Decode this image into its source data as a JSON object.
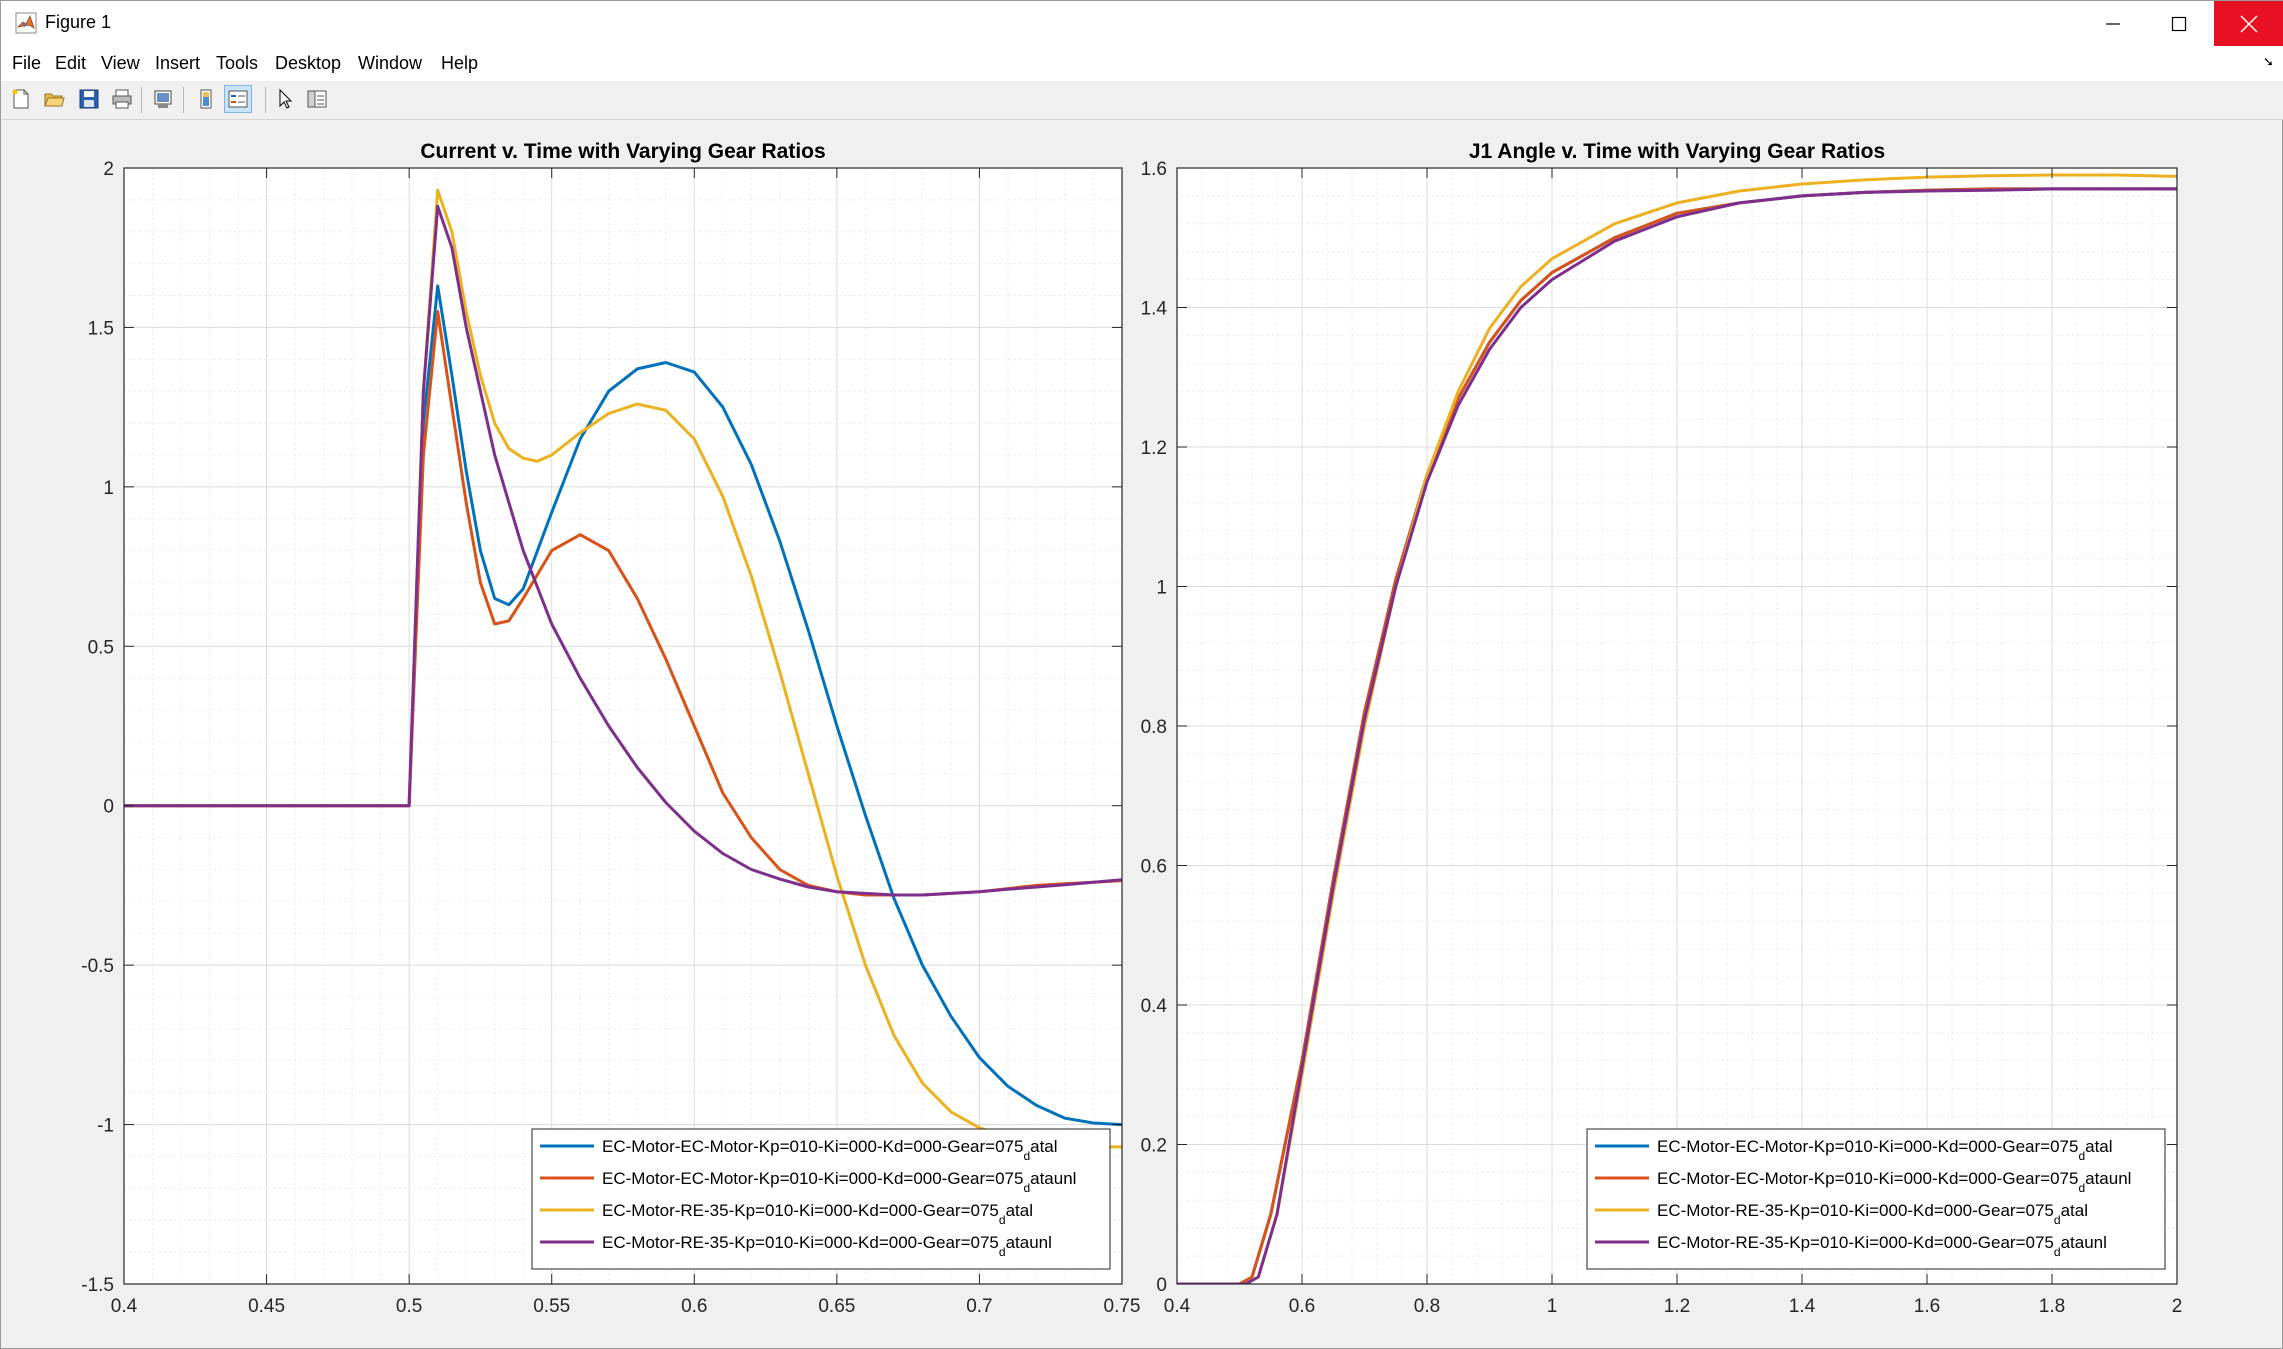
{
  "window": {
    "title": "Figure 1"
  },
  "menu": {
    "items": [
      "File",
      "Edit",
      "View",
      "Insert",
      "Tools",
      "Desktop",
      "Window",
      "Help"
    ]
  },
  "toolbar": {
    "icons": [
      "new-figure-icon",
      "open-file-icon",
      "save-icon",
      "print-icon",
      "print-preview-icon",
      "colorbar-icon",
      "legend-icon",
      "pointer-icon",
      "property-inspector-icon"
    ]
  },
  "colors": {
    "series1": "#0072BD",
    "series2": "#D95319",
    "series3": "#EDB120",
    "series4": "#7E2F8E",
    "close_button": "#e81123"
  },
  "legend_entries": [
    {
      "main": "EC-Motor-EC-Motor-Kp=010-Ki=000-Kd=000-Gear=075",
      "sub": "d",
      "tail": "atal"
    },
    {
      "main": "EC-Motor-EC-Motor-Kp=010-Ki=000-Kd=000-Gear=075",
      "sub": "d",
      "tail": "ataunl"
    },
    {
      "main": "EC-Motor-RE-35-Kp=010-Ki=000-Kd=000-Gear=075",
      "sub": "d",
      "tail": "atal"
    },
    {
      "main": "EC-Motor-RE-35-Kp=010-Ki=000-Kd=000-Gear=075",
      "sub": "d",
      "tail": "ataunl"
    }
  ],
  "chart_data": [
    {
      "type": "line",
      "title": "Current v. Time with Varying Gear Ratios",
      "xlabel": "",
      "ylabel": "",
      "xlim": [
        0.4,
        0.75
      ],
      "ylim": [
        -1.5,
        2
      ],
      "xticks": [
        "0.4",
        "0.45",
        "0.5",
        "0.55",
        "0.6",
        "0.65",
        "0.7",
        "0.75"
      ],
      "yticks": [
        "-1.5",
        "-1",
        "-0.5",
        "0",
        "0.5",
        "1",
        "1.5",
        "2"
      ],
      "grid": true,
      "minor_grid": true,
      "legend_location": "bottom-right",
      "series": [
        {
          "x": [
            0.4,
            0.5,
            0.505,
            0.51,
            0.515,
            0.52,
            0.525,
            0.53,
            0.535,
            0.54,
            0.55,
            0.56,
            0.57,
            0.58,
            0.59,
            0.6,
            0.61,
            0.62,
            0.63,
            0.64,
            0.65,
            0.66,
            0.67,
            0.68,
            0.69,
            0.7,
            0.71,
            0.72,
            0.73,
            0.74,
            0.75
          ],
          "y": [
            0,
            0,
            1.2,
            1.63,
            1.35,
            1.05,
            0.8,
            0.65,
            0.63,
            0.68,
            0.92,
            1.15,
            1.3,
            1.37,
            1.39,
            1.36,
            1.25,
            1.07,
            0.83,
            0.55,
            0.25,
            -0.03,
            -0.29,
            -0.5,
            -0.66,
            -0.79,
            -0.88,
            -0.94,
            -0.98,
            -0.995,
            -1.0
          ]
        },
        {
          "x": [
            0.4,
            0.5,
            0.505,
            0.51,
            0.515,
            0.52,
            0.525,
            0.53,
            0.535,
            0.54,
            0.55,
            0.56,
            0.57,
            0.58,
            0.59,
            0.6,
            0.61,
            0.62,
            0.63,
            0.64,
            0.65,
            0.66,
            0.67,
            0.68,
            0.69,
            0.7,
            0.71,
            0.72,
            0.73,
            0.74,
            0.75
          ],
          "y": [
            0,
            0,
            1.1,
            1.55,
            1.25,
            0.95,
            0.7,
            0.57,
            0.58,
            0.65,
            0.8,
            0.85,
            0.8,
            0.65,
            0.46,
            0.25,
            0.04,
            -0.1,
            -0.2,
            -0.25,
            -0.27,
            -0.28,
            -0.28,
            -0.28,
            -0.275,
            -0.27,
            -0.26,
            -0.25,
            -0.245,
            -0.24,
            -0.235
          ]
        },
        {
          "x": [
            0.4,
            0.5,
            0.505,
            0.51,
            0.515,
            0.52,
            0.525,
            0.53,
            0.535,
            0.54,
            0.545,
            0.55,
            0.56,
            0.57,
            0.58,
            0.59,
            0.6,
            0.61,
            0.62,
            0.63,
            0.64,
            0.65,
            0.66,
            0.67,
            0.68,
            0.69,
            0.7,
            0.71,
            0.72,
            0.73,
            0.74,
            0.75
          ],
          "y": [
            0,
            0,
            1.3,
            1.93,
            1.8,
            1.55,
            1.35,
            1.2,
            1.12,
            1.09,
            1.08,
            1.1,
            1.17,
            1.23,
            1.26,
            1.24,
            1.15,
            0.97,
            0.72,
            0.42,
            0.1,
            -0.22,
            -0.5,
            -0.72,
            -0.87,
            -0.96,
            -1.01,
            -1.04,
            -1.055,
            -1.065,
            -1.07,
            -1.07
          ]
        },
        {
          "x": [
            0.4,
            0.5,
            0.505,
            0.51,
            0.515,
            0.52,
            0.53,
            0.54,
            0.55,
            0.56,
            0.57,
            0.58,
            0.59,
            0.6,
            0.61,
            0.62,
            0.63,
            0.64,
            0.65,
            0.66,
            0.67,
            0.68,
            0.69,
            0.7,
            0.71,
            0.72,
            0.73,
            0.74,
            0.75
          ],
          "y": [
            0,
            0,
            1.3,
            1.88,
            1.75,
            1.5,
            1.1,
            0.8,
            0.57,
            0.4,
            0.25,
            0.12,
            0.01,
            -0.08,
            -0.15,
            -0.2,
            -0.23,
            -0.255,
            -0.27,
            -0.275,
            -0.28,
            -0.28,
            -0.275,
            -0.27,
            -0.262,
            -0.255,
            -0.248,
            -0.24,
            -0.232
          ]
        }
      ]
    },
    {
      "type": "line",
      "title": "J1 Angle v. Time with Varying Gear Ratios",
      "xlabel": "",
      "ylabel": "",
      "xlim": [
        0.4,
        2
      ],
      "ylim": [
        0,
        1.6
      ],
      "xticks": [
        "0.4",
        "0.6",
        "0.8",
        "1",
        "1.2",
        "1.4",
        "1.6",
        "1.8",
        "2"
      ],
      "yticks": [
        "0",
        "0.2",
        "0.4",
        "0.6",
        "0.8",
        "1",
        "1.2",
        "1.4",
        "1.6"
      ],
      "grid": true,
      "minor_grid": true,
      "legend_location": "bottom-right",
      "series": [
        {
          "x": [
            0.4,
            0.5,
            0.52,
            0.55,
            0.6,
            0.65,
            0.7,
            0.75,
            0.8,
            0.85,
            0.9,
            0.95,
            1.0,
            1.1,
            1.2,
            1.3,
            1.4,
            1.5,
            1.6,
            1.7,
            1.8,
            1.9,
            2.0
          ],
          "y": [
            0,
            0,
            0.01,
            0.1,
            0.32,
            0.58,
            0.82,
            1.01,
            1.16,
            1.27,
            1.35,
            1.41,
            1.45,
            1.5,
            1.535,
            1.55,
            1.56,
            1.565,
            1.568,
            1.57,
            1.57,
            1.57,
            1.57
          ]
        },
        {
          "x": [
            0.4,
            0.5,
            0.52,
            0.55,
            0.6,
            0.65,
            0.7,
            0.75,
            0.8,
            0.85,
            0.9,
            0.95,
            1.0,
            1.1,
            1.2,
            1.3,
            1.4,
            1.5,
            1.6,
            1.7,
            1.8,
            1.9,
            2.0
          ],
          "y": [
            0,
            0,
            0.01,
            0.1,
            0.32,
            0.58,
            0.82,
            1.01,
            1.16,
            1.27,
            1.35,
            1.41,
            1.45,
            1.5,
            1.535,
            1.55,
            1.56,
            1.565,
            1.568,
            1.57,
            1.57,
            1.57,
            1.57
          ]
        },
        {
          "x": [
            0.4,
            0.51,
            0.53,
            0.56,
            0.6,
            0.65,
            0.7,
            0.75,
            0.8,
            0.85,
            0.9,
            0.95,
            1.0,
            1.1,
            1.2,
            1.3,
            1.4,
            1.5,
            1.6,
            1.7,
            1.8,
            1.9,
            2.0
          ],
          "y": [
            0,
            0,
            0.01,
            0.1,
            0.3,
            0.56,
            0.8,
            1.0,
            1.16,
            1.28,
            1.37,
            1.43,
            1.47,
            1.52,
            1.55,
            1.567,
            1.577,
            1.583,
            1.587,
            1.589,
            1.59,
            1.59,
            1.588
          ]
        },
        {
          "x": [
            0.4,
            0.51,
            0.53,
            0.56,
            0.6,
            0.65,
            0.7,
            0.75,
            0.8,
            0.85,
            0.9,
            0.95,
            1.0,
            1.1,
            1.2,
            1.3,
            1.4,
            1.5,
            1.6,
            1.7,
            1.8,
            1.9,
            2.0
          ],
          "y": [
            0,
            0,
            0.01,
            0.1,
            0.31,
            0.57,
            0.81,
            1.0,
            1.15,
            1.26,
            1.34,
            1.4,
            1.44,
            1.495,
            1.53,
            1.55,
            1.56,
            1.565,
            1.567,
            1.568,
            1.57,
            1.57,
            1.57
          ]
        }
      ]
    }
  ]
}
